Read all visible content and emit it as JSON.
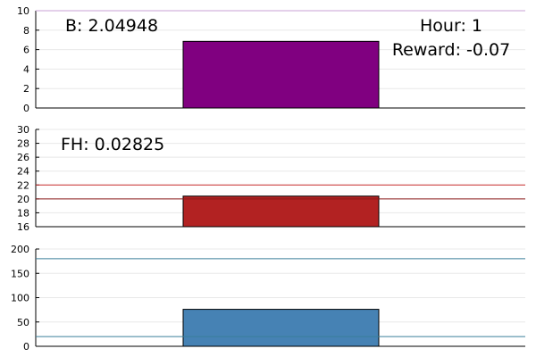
{
  "chart_data": [
    {
      "type": "bar",
      "categories": [
        ""
      ],
      "values": [
        6.85
      ],
      "ylim": [
        0,
        10
      ],
      "yticks": [
        0,
        2,
        4,
        6,
        8,
        10
      ],
      "bar_color": "#800080",
      "reference_lines": [
        {
          "y": 10,
          "color": "#c8a2d6"
        }
      ],
      "grid": true,
      "annotations": [
        {
          "text": "B: 2.04948",
          "position": "top-left"
        },
        {
          "text": "Hour: 1",
          "position": "top-right"
        },
        {
          "text": "Reward: -0.07",
          "position": "top-right-second-line"
        }
      ]
    },
    {
      "type": "bar",
      "categories": [
        ""
      ],
      "values": [
        20.4
      ],
      "ylim": [
        16,
        30
      ],
      "yticks": [
        16,
        18,
        20,
        22,
        24,
        26,
        28,
        30
      ],
      "bar_color": "#b22222",
      "reference_lines": [
        {
          "y": 22,
          "color": "#cc3333"
        },
        {
          "y": 20,
          "color": "#8b1a1a"
        }
      ],
      "grid": true,
      "annotations": [
        {
          "text": "FH: 0.02825",
          "position": "top-left"
        }
      ]
    },
    {
      "type": "bar",
      "categories": [
        ""
      ],
      "values": [
        76
      ],
      "ylim": [
        0,
        200
      ],
      "yticks": [
        0,
        50,
        100,
        150,
        200
      ],
      "bar_color": "#4682b4",
      "reference_lines": [
        {
          "y": 180,
          "color": "#3a7f9a"
        },
        {
          "y": 20,
          "color": "#3a7f9a"
        }
      ],
      "grid": true,
      "annotations": []
    }
  ]
}
